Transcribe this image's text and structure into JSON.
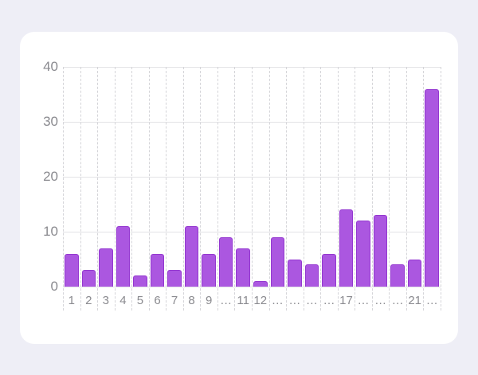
{
  "colors": {
    "page_bg": "#eeeef6",
    "card_bg": "#ffffff",
    "grid_solid": "#e3e3e6",
    "grid_dashed": "#d5d5d9",
    "axis_label": "#8a8a8f",
    "bar_fill": "#ab57e0",
    "bar_border": "#9438d0"
  },
  "chart_data": {
    "type": "bar",
    "title": "",
    "xlabel": "",
    "ylabel": "",
    "categories": [
      "1",
      "2",
      "3",
      "4",
      "5",
      "6",
      "7",
      "8",
      "9",
      "…",
      "11",
      "12",
      "…",
      "…",
      "…",
      "…",
      "17",
      "…",
      "…",
      "…",
      "21",
      "…"
    ],
    "values": [
      6,
      3,
      7,
      11,
      2,
      6,
      3,
      11,
      6,
      9,
      7,
      1,
      9,
      5,
      4,
      6,
      14,
      12,
      13,
      4,
      5,
      36
    ],
    "ylim": [
      0,
      40
    ],
    "yticks": [
      0,
      10,
      20,
      30,
      40
    ],
    "grid": "horizontal-solid-vertical-dashed",
    "legend": "none"
  }
}
